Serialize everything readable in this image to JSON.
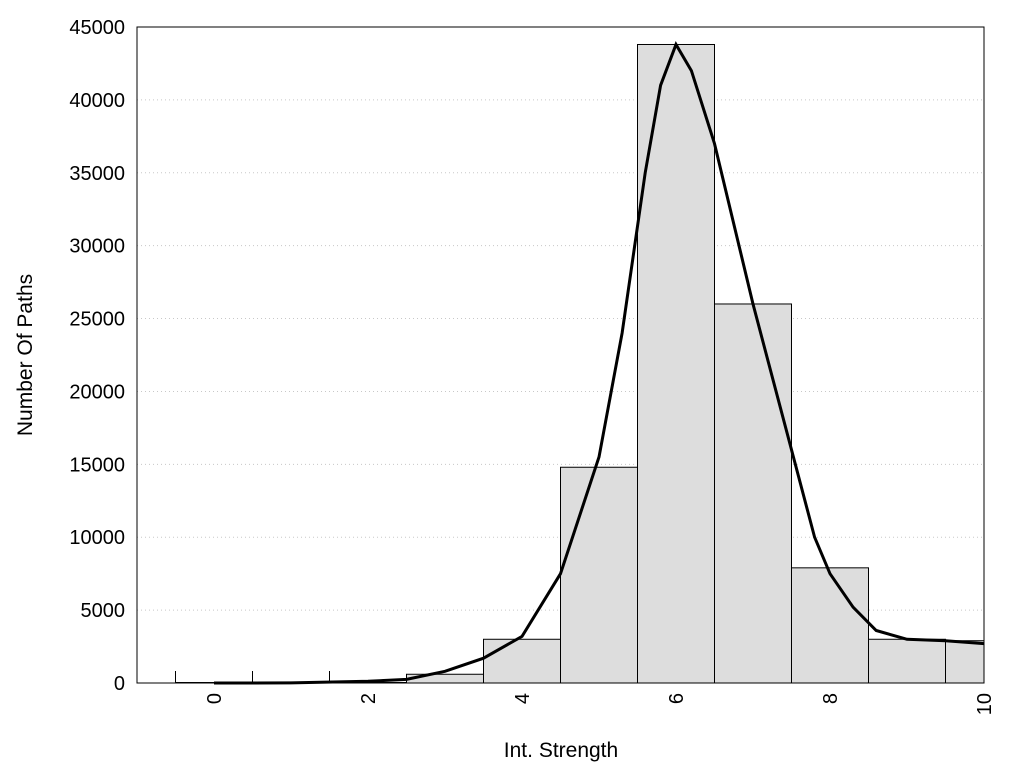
{
  "chart_data": {
    "type": "bar",
    "xlabel": "Int. Strength",
    "ylabel": "Number Of Paths",
    "xlim": [
      -1,
      10
    ],
    "ylim": [
      0,
      45000
    ],
    "xticks": [
      "0",
      "2",
      "4",
      "6",
      "8",
      "10"
    ],
    "yticks": [
      "0",
      "5000",
      "10000",
      "15000",
      "20000",
      "25000",
      "30000",
      "35000",
      "40000",
      "45000"
    ],
    "grid": "horizontal-dotted",
    "bar_color": "#dddddd",
    "bars": [
      {
        "x": 0,
        "value": 0
      },
      {
        "x": 1,
        "value": 0
      },
      {
        "x": 2,
        "value": 0
      },
      {
        "x": 3,
        "value": 600
      },
      {
        "x": 4,
        "value": 3000
      },
      {
        "x": 5,
        "value": 14800
      },
      {
        "x": 6,
        "value": 43800
      },
      {
        "x": 7,
        "value": 26000
      },
      {
        "x": 8,
        "value": 7900
      },
      {
        "x": 9,
        "value": 3000
      },
      {
        "x": 10,
        "value": 2900
      }
    ],
    "curve": {
      "x": [
        0,
        1,
        2,
        2.5,
        3,
        3.5,
        4,
        4.5,
        5,
        5.3,
        5.6,
        5.8,
        6.0,
        6.2,
        6.5,
        7.0,
        7.5,
        7.8,
        8.0,
        8.3,
        8.6,
        9.0,
        9.5,
        10.0
      ],
      "y": [
        0,
        10,
        120,
        250,
        800,
        1700,
        3200,
        7500,
        15500,
        24000,
        35000,
        41000,
        43800,
        42000,
        37000,
        26000,
        16000,
        10000,
        7500,
        5200,
        3600,
        3000,
        2900,
        2700
      ]
    }
  }
}
